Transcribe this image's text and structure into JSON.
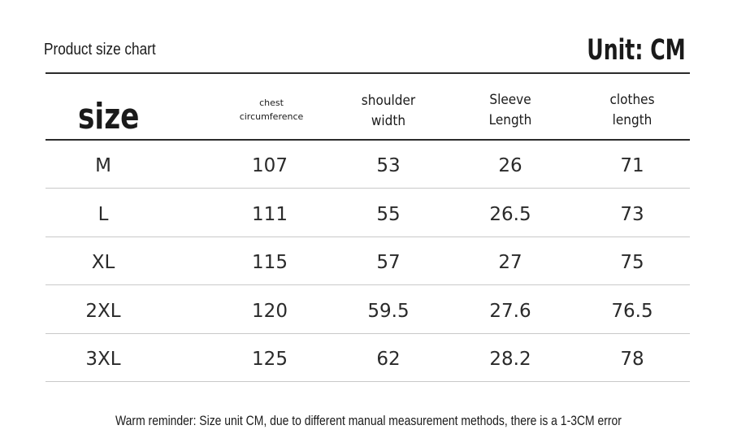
{
  "header": {
    "title": "Product size chart",
    "unit": "Unit: CM"
  },
  "table": {
    "columns": [
      "size",
      "chest\ncircumference",
      "shoulder\nwidth",
      "Sleeve\nLength",
      "clothes\nlength"
    ],
    "rows": [
      {
        "size": "M",
        "chest": "107",
        "shoulder": "53",
        "sleeve": "26",
        "clothes": "71"
      },
      {
        "size": "L",
        "chest": "111",
        "shoulder": "55",
        "sleeve": "26.5",
        "clothes": "73"
      },
      {
        "size": "XL",
        "chest": "115",
        "shoulder": "57",
        "sleeve": "27",
        "clothes": "75"
      },
      {
        "size": "2XL",
        "chest": "120",
        "shoulder": "59.5",
        "sleeve": "27.6",
        "clothes": "76.5"
      },
      {
        "size": "3XL",
        "chest": "125",
        "shoulder": "62",
        "sleeve": "28.2",
        "clothes": "78"
      }
    ]
  },
  "footer": {
    "reminder": "Warm reminder: Size unit CM, due to different manual measurement methods, there is a 1-3CM error"
  }
}
